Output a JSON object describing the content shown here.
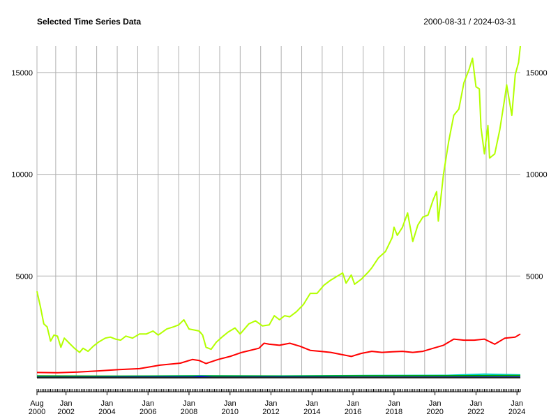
{
  "chart_data": {
    "type": "line",
    "title": "Selected Time Series Data",
    "date_range_label": "2000-08-31 / 2024-03-31",
    "x_range": [
      "2000-08-31",
      "2024-03-31"
    ],
    "ylim": [
      0,
      16300
    ],
    "y_ticks": [
      5000,
      10000,
      15000
    ],
    "grid": true,
    "x_tick_labels": [
      {
        "date": "2000-08-31",
        "top": "Aug",
        "bottom": "2000"
      },
      {
        "date": "2002-01-31",
        "top": "Jan",
        "bottom": "2002"
      },
      {
        "date": "2004-01-31",
        "top": "Jan",
        "bottom": "2004"
      },
      {
        "date": "2006-01-31",
        "top": "Jan",
        "bottom": "2006"
      },
      {
        "date": "2008-01-31",
        "top": "Jan",
        "bottom": "2008"
      },
      {
        "date": "2010-01-31",
        "top": "Jan",
        "bottom": "2010"
      },
      {
        "date": "2012-01-31",
        "top": "Jan",
        "bottom": "2012"
      },
      {
        "date": "2014-01-31",
        "top": "Jan",
        "bottom": "2014"
      },
      {
        "date": "2016-01-31",
        "top": "Jan",
        "bottom": "2016"
      },
      {
        "date": "2018-01-31",
        "top": "Jan",
        "bottom": "2018"
      },
      {
        "date": "2020-01-31",
        "top": "Jan",
        "bottom": "2020"
      },
      {
        "date": "2022-01-31",
        "top": "Jan",
        "bottom": "2022"
      },
      {
        "date": "2024-01-31",
        "top": "Jan",
        "bottom": "2024"
      }
    ],
    "v_grid_dates": [
      "2000-08-31",
      "2001-07-31",
      "2002-07-31",
      "2003-07-31",
      "2004-07-31",
      "2005-07-31",
      "2006-07-31",
      "2007-07-31",
      "2008-07-31",
      "2009-07-31",
      "2010-07-31",
      "2011-07-31",
      "2012-07-31",
      "2013-07-31",
      "2014-07-31",
      "2015-07-31",
      "2016-07-31",
      "2017-07-31",
      "2018-07-31",
      "2019-07-31",
      "2020-07-31",
      "2021-07-31",
      "2022-07-31",
      "2023-07-31"
    ],
    "series": [
      {
        "color": "#b3ff00",
        "points": [
          [
            "2000-08-31",
            4250
          ],
          [
            "2000-10-31",
            3500
          ],
          [
            "2000-12-31",
            2650
          ],
          [
            "2001-02-28",
            2500
          ],
          [
            "2001-04-30",
            1800
          ],
          [
            "2001-06-30",
            2100
          ],
          [
            "2001-08-31",
            2050
          ],
          [
            "2001-10-31",
            1500
          ],
          [
            "2001-12-31",
            1950
          ],
          [
            "2002-03-31",
            1700
          ],
          [
            "2002-06-30",
            1450
          ],
          [
            "2002-09-30",
            1250
          ],
          [
            "2002-11-30",
            1450
          ],
          [
            "2003-02-28",
            1300
          ],
          [
            "2003-05-31",
            1550
          ],
          [
            "2003-08-31",
            1750
          ],
          [
            "2003-12-31",
            1950
          ],
          [
            "2004-03-31",
            2000
          ],
          [
            "2004-06-30",
            1900
          ],
          [
            "2004-09-30",
            1850
          ],
          [
            "2004-12-31",
            2050
          ],
          [
            "2005-04-30",
            1950
          ],
          [
            "2005-08-31",
            2150
          ],
          [
            "2005-12-31",
            2150
          ],
          [
            "2006-04-30",
            2300
          ],
          [
            "2006-07-31",
            2100
          ],
          [
            "2006-12-31",
            2400
          ],
          [
            "2007-04-30",
            2500
          ],
          [
            "2007-07-31",
            2600
          ],
          [
            "2007-10-31",
            2850
          ],
          [
            "2008-01-31",
            2400
          ],
          [
            "2008-04-30",
            2350
          ],
          [
            "2008-07-31",
            2300
          ],
          [
            "2008-09-30",
            2100
          ],
          [
            "2008-11-30",
            1500
          ],
          [
            "2009-02-28",
            1400
          ],
          [
            "2009-05-31",
            1750
          ],
          [
            "2009-09-30",
            2050
          ],
          [
            "2009-12-31",
            2250
          ],
          [
            "2010-04-30",
            2450
          ],
          [
            "2010-07-31",
            2150
          ],
          [
            "2010-12-31",
            2650
          ],
          [
            "2011-04-30",
            2800
          ],
          [
            "2011-08-31",
            2550
          ],
          [
            "2011-12-31",
            2600
          ],
          [
            "2012-03-31",
            3050
          ],
          [
            "2012-06-30",
            2850
          ],
          [
            "2012-09-30",
            3050
          ],
          [
            "2012-12-31",
            3000
          ],
          [
            "2013-04-30",
            3250
          ],
          [
            "2013-08-31",
            3600
          ],
          [
            "2013-12-31",
            4150
          ],
          [
            "2014-04-30",
            4150
          ],
          [
            "2014-08-31",
            4550
          ],
          [
            "2014-12-31",
            4800
          ],
          [
            "2015-04-30",
            5000
          ],
          [
            "2015-07-31",
            5150
          ],
          [
            "2015-09-30",
            4650
          ],
          [
            "2015-12-31",
            5050
          ],
          [
            "2016-02-29",
            4600
          ],
          [
            "2016-06-30",
            4850
          ],
          [
            "2016-10-31",
            5200
          ],
          [
            "2016-12-31",
            5400
          ],
          [
            "2017-04-30",
            5900
          ],
          [
            "2017-08-31",
            6200
          ],
          [
            "2017-12-31",
            6900
          ],
          [
            "2018-01-31",
            7400
          ],
          [
            "2018-03-31",
            7000
          ],
          [
            "2018-06-30",
            7400
          ],
          [
            "2018-09-30",
            8100
          ],
          [
            "2018-12-31",
            6700
          ],
          [
            "2019-03-31",
            7500
          ],
          [
            "2019-06-30",
            7900
          ],
          [
            "2019-09-30",
            8000
          ],
          [
            "2019-12-31",
            8750
          ],
          [
            "2020-02-29",
            9150
          ],
          [
            "2020-03-31",
            7700
          ],
          [
            "2020-06-30",
            10000
          ],
          [
            "2020-09-30",
            11600
          ],
          [
            "2020-12-31",
            12900
          ],
          [
            "2021-03-31",
            13200
          ],
          [
            "2021-06-30",
            14500
          ],
          [
            "2021-09-30",
            15150
          ],
          [
            "2021-11-30",
            15700
          ],
          [
            "2022-01-31",
            14300
          ],
          [
            "2022-03-31",
            14200
          ],
          [
            "2022-04-30",
            12300
          ],
          [
            "2022-06-30",
            11000
          ],
          [
            "2022-08-31",
            12400
          ],
          [
            "2022-09-30",
            10800
          ],
          [
            "2022-12-31",
            11000
          ],
          [
            "2023-03-31",
            12200
          ],
          [
            "2023-06-30",
            13800
          ],
          [
            "2023-07-31",
            14400
          ],
          [
            "2023-10-31",
            12900
          ],
          [
            "2023-12-31",
            14900
          ],
          [
            "2024-02-29",
            15500
          ],
          [
            "2024-03-31",
            16300
          ]
        ]
      },
      {
        "color": "#ff0000",
        "points": [
          [
            "2000-08-31",
            260
          ],
          [
            "2001-08-31",
            250
          ],
          [
            "2002-08-31",
            280
          ],
          [
            "2003-08-31",
            340
          ],
          [
            "2004-08-31",
            400
          ],
          [
            "2005-08-31",
            450
          ],
          [
            "2006-03-31",
            550
          ],
          [
            "2006-08-31",
            620
          ],
          [
            "2007-08-31",
            720
          ],
          [
            "2008-03-31",
            900
          ],
          [
            "2008-07-31",
            850
          ],
          [
            "2008-11-30",
            700
          ],
          [
            "2009-06-30",
            900
          ],
          [
            "2010-01-31",
            1050
          ],
          [
            "2010-08-31",
            1250
          ],
          [
            "2011-06-30",
            1450
          ],
          [
            "2011-09-30",
            1700
          ],
          [
            "2011-12-31",
            1650
          ],
          [
            "2012-06-30",
            1600
          ],
          [
            "2012-12-31",
            1700
          ],
          [
            "2013-06-30",
            1550
          ],
          [
            "2013-12-31",
            1350
          ],
          [
            "2014-06-30",
            1300
          ],
          [
            "2014-12-31",
            1250
          ],
          [
            "2015-06-30",
            1150
          ],
          [
            "2015-12-31",
            1050
          ],
          [
            "2016-06-30",
            1200
          ],
          [
            "2016-12-31",
            1300
          ],
          [
            "2017-06-30",
            1250
          ],
          [
            "2017-12-31",
            1280
          ],
          [
            "2018-06-30",
            1300
          ],
          [
            "2018-12-31",
            1250
          ],
          [
            "2019-06-30",
            1300
          ],
          [
            "2019-12-31",
            1450
          ],
          [
            "2020-06-30",
            1600
          ],
          [
            "2020-12-31",
            1900
          ],
          [
            "2021-06-30",
            1850
          ],
          [
            "2021-12-31",
            1850
          ],
          [
            "2022-06-30",
            1900
          ],
          [
            "2022-12-31",
            1650
          ],
          [
            "2023-06-30",
            1950
          ],
          [
            "2023-12-31",
            2000
          ],
          [
            "2024-03-31",
            2150
          ]
        ]
      },
      {
        "color": "#00d2c8",
        "points": [
          [
            "2000-08-31",
            50
          ],
          [
            "2004-08-31",
            80
          ],
          [
            "2008-08-31",
            100
          ],
          [
            "2012-08-31",
            90
          ],
          [
            "2016-08-31",
            110
          ],
          [
            "2020-08-31",
            120
          ],
          [
            "2022-06-30",
            180
          ],
          [
            "2024-03-31",
            140
          ]
        ]
      },
      {
        "color": "#00a000",
        "points": [
          [
            "2000-08-31",
            90
          ],
          [
            "2004-08-31",
            75
          ],
          [
            "2008-08-31",
            85
          ],
          [
            "2012-08-31",
            80
          ],
          [
            "2016-08-31",
            95
          ],
          [
            "2020-08-31",
            100
          ],
          [
            "2024-03-31",
            110
          ]
        ]
      },
      {
        "color": "#0000ff",
        "points": [
          [
            "2000-08-31",
            20
          ],
          [
            "2004-08-31",
            25
          ],
          [
            "2008-03-31",
            30
          ],
          [
            "2008-08-31",
            60
          ],
          [
            "2009-03-31",
            20
          ],
          [
            "2012-08-31",
            30
          ],
          [
            "2016-08-31",
            25
          ],
          [
            "2020-08-31",
            30
          ],
          [
            "2024-03-31",
            35
          ]
        ]
      },
      {
        "color": "#202020",
        "points": [
          [
            "2000-08-31",
            5
          ],
          [
            "2012-08-31",
            8
          ],
          [
            "2024-03-31",
            10
          ]
        ]
      }
    ]
  }
}
